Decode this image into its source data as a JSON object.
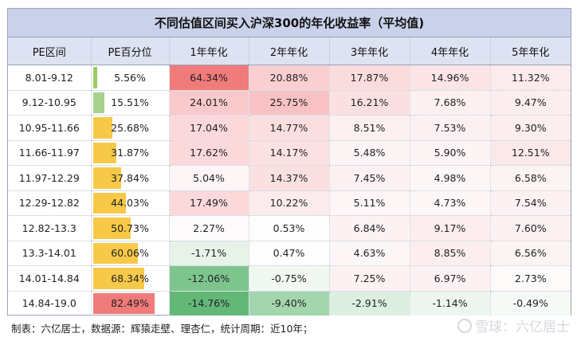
{
  "title": "不同估值区间买入沪深300的年化收益率（平均值)",
  "headers": [
    "PE区间",
    "PE百分位",
    "1年年化",
    "2年年化",
    "3年年化",
    "4年年化",
    "5年年化"
  ],
  "rows": [
    {
      "range": "8.01-9.12",
      "pct": "5.56%",
      "pct_value": 5.56,
      "bar_color": "#9ccc65",
      "cells": [
        "64.34%",
        "20.88%",
        "17.87%",
        "14.96%",
        "11.32%"
      ],
      "colors": [
        "#f07b7b",
        "#f9cfd1",
        "#fbdcdd",
        "#fbe4e5",
        "#fcebed"
      ]
    },
    {
      "range": "9.12-10.95",
      "pct": "15.51%",
      "pct_value": 15.51,
      "bar_color": "#a9d18e",
      "cells": [
        "24.01%",
        "25.75%",
        "16.21%",
        "7.68%",
        "9.47%"
      ],
      "colors": [
        "#f9c9cb",
        "#f8c2c5",
        "#fbe0e1",
        "#fcf0f1",
        "#fcedee"
      ]
    },
    {
      "range": "10.95-11.66",
      "pct": "25.68%",
      "pct_value": 25.68,
      "bar_color": "#f7c948",
      "cells": [
        "17.04%",
        "14.77%",
        "8.51%",
        "7.53%",
        "9.30%"
      ],
      "colors": [
        "#fbd9db",
        "#fbdfe0",
        "#fcf0f0",
        "#fcf1f2",
        "#fcedef"
      ]
    },
    {
      "range": "11.66-11.97",
      "pct": "31.87%",
      "pct_value": 31.87,
      "bar_color": "#f7c948",
      "cells": [
        "17.62%",
        "14.17%",
        "5.48%",
        "5.90%",
        "12.51%"
      ],
      "colors": [
        "#fbd8da",
        "#fbe1e2",
        "#fdf5f5",
        "#fcf4f5",
        "#fbe8e9"
      ]
    },
    {
      "range": "11.97-12.29",
      "pct": "37.84%",
      "pct_value": 37.84,
      "bar_color": "#f7c948",
      "cells": [
        "5.04%",
        "14.37%",
        "7.45%",
        "4.98%",
        "6.58%"
      ],
      "colors": [
        "#fdf5f6",
        "#fbe0e2",
        "#fcf1f2",
        "#fdf6f6",
        "#fcf3f3"
      ]
    },
    {
      "range": "12.29-12.82",
      "pct": "44.03%",
      "pct_value": 44.03,
      "bar_color": "#f7c948",
      "cells": [
        "17.49%",
        "10.22%",
        "5.11%",
        "4.73%",
        "7.54%"
      ],
      "colors": [
        "#fbd8da",
        "#fcebec",
        "#fdf5f6",
        "#fdf6f7",
        "#fcf1f2"
      ]
    },
    {
      "range": "12.82-13.3",
      "pct": "50.73%",
      "pct_value": 50.73,
      "bar_color": "#f7c948",
      "cells": [
        "2.27%",
        "0.53%",
        "6.84%",
        "9.17%",
        "7.60%"
      ],
      "colors": [
        "#fdfafb",
        "#fdfdfd",
        "#fcf2f3",
        "#fceeef",
        "#fcf1f2"
      ]
    },
    {
      "range": "13.3-14.01",
      "pct": "60.06%",
      "pct_value": 60.06,
      "bar_color": "#f7c948",
      "cells": [
        "-1.71%",
        "0.47%",
        "4.63%",
        "8.85%",
        "6.56%"
      ],
      "colors": [
        "#e7f2e9",
        "#fdfdfd",
        "#fdf6f7",
        "#fceeef",
        "#fcf3f3"
      ]
    },
    {
      "range": "14.01-14.84",
      "pct": "68.34%",
      "pct_value": 68.34,
      "bar_color": "#f7c948",
      "cells": [
        "-12.06%",
        "-0.75%",
        "7.25%",
        "6.97%",
        "2.73%"
      ],
      "colors": [
        "#7dc58c",
        "#f1f8f2",
        "#fcf2f2",
        "#fcf2f3",
        "#fdfafa"
      ]
    },
    {
      "range": "14.84-19.0",
      "pct": "82.49%",
      "pct_value": 82.49,
      "bar_color": "#f07b7b",
      "cells": [
        "-14.76%",
        "-9.40%",
        "-2.91%",
        "-1.14%",
        "-0.49%"
      ],
      "colors": [
        "#63b878",
        "#a3d6ad",
        "#dcefe0",
        "#ecf6ee",
        "#f5faf6"
      ]
    }
  ],
  "footer": "制表：六亿居士，数据源：辉猿走壁、理杏仁，统计周期：近10年；",
  "watermark": "雪球：六亿居士"
}
